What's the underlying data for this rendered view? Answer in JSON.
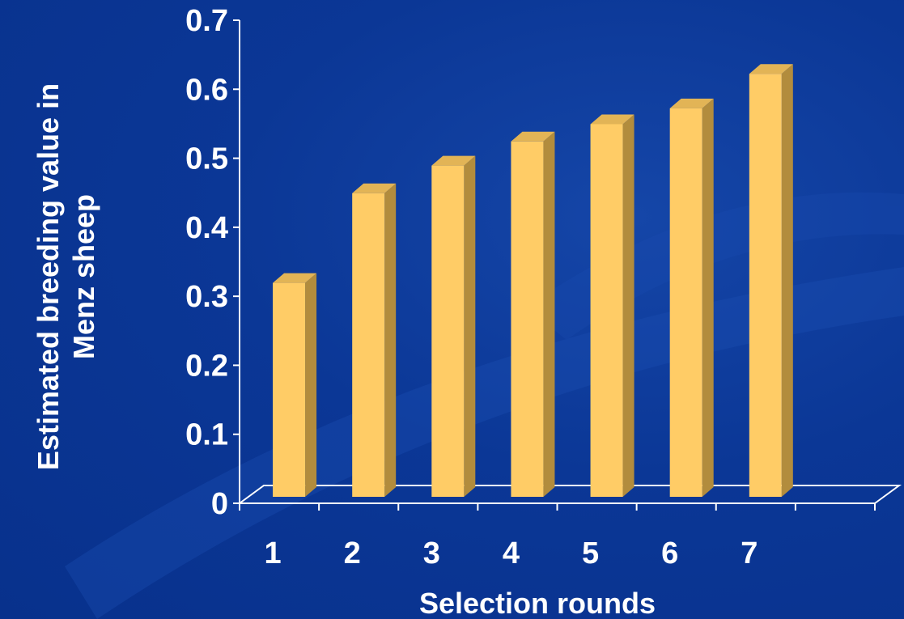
{
  "chart_data": {
    "type": "bar",
    "style": "3d",
    "categories": [
      "1",
      "2",
      "3",
      "4",
      "5",
      "6",
      "7"
    ],
    "values": [
      0.31,
      0.44,
      0.48,
      0.515,
      0.54,
      0.563,
      0.613
    ],
    "title": "",
    "xlabel": "Selection rounds",
    "ylabel": "Estimated breeding value in Menz sheep",
    "ylabel_lines": [
      "Estimated breeding value in",
      "Menz sheep"
    ],
    "ylim": [
      0,
      0.7
    ],
    "yticks": [
      0,
      0.1,
      0.2,
      0.3,
      0.4,
      0.5,
      0.6,
      0.7
    ],
    "ytick_labels": [
      "0",
      "0.1",
      "0.2",
      "0.3",
      "0.4",
      "0.5",
      "0.6",
      "0.7"
    ],
    "grid": false,
    "legend": "none",
    "colors": {
      "background": "#0a3596",
      "bar_front": "#ffcc66",
      "bar_side": "#b28c3d",
      "bar_top": "#e2b456",
      "axis": "#ffffff",
      "text": "#ffffff"
    }
  }
}
